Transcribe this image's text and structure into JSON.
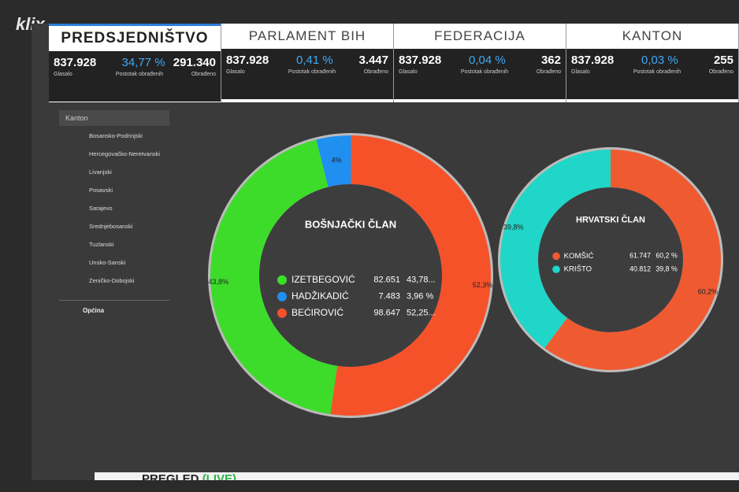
{
  "header": {
    "logo": "klix"
  },
  "tabs": [
    {
      "title": "PREDSJEDNIŠTVO",
      "voted": "837.928",
      "voted_label": "Glasalo",
      "percent": "34,77 %",
      "percent_label": "Postotak obrađenih",
      "processed": "291.340",
      "processed_label": "Obrađeno"
    },
    {
      "title": "PARLAMENT BIH",
      "voted": "837.928",
      "voted_label": "Glasalo",
      "percent": "0,41 %",
      "percent_label": "Postotak obrađenih",
      "processed": "3.447",
      "processed_label": "Obrađeno"
    },
    {
      "title": "FEDERACIJA",
      "voted": "837.928",
      "voted_label": "Glasalo",
      "percent": "0,04 %",
      "percent_label": "Postotak obrađenih",
      "processed": "362",
      "processed_label": "Obrađeno"
    },
    {
      "title": "KANTON",
      "voted": "837.928",
      "voted_label": "Glasalo",
      "percent": "0,03 %",
      "percent_label": "Postotak obrađenih",
      "processed": "255",
      "processed_label": "Obrađeno"
    }
  ],
  "sidebar": {
    "heading": "Kanton",
    "items": [
      "Bosansko-Podrinjski",
      "Hercegovačko-Neretvanski",
      "Livanjski",
      "Posavski",
      "Sarajevo",
      "Srednjebosanski",
      "Tuzlanski",
      "Unsko-Sanski",
      "Zeničko-Dobojski"
    ],
    "footer": "Općina"
  },
  "footer": {
    "title": "PREGLED",
    "live": "(LIVE)"
  },
  "chart_data": [
    {
      "type": "pie",
      "title": "BOŠNJAČKI ČLAN",
      "categories": [
        "IZETBEGOVIĆ",
        "HADŽIKADIĆ",
        "BEĆIROVIĆ"
      ],
      "values": [
        43.8,
        4,
        52.3
      ],
      "value_labels": [
        "43,8%",
        "4%",
        "52,3%"
      ],
      "colors": [
        "#3ddc2a",
        "#1f8ff0",
        "#f5522a"
      ],
      "votes": [
        "82.651",
        "7.483",
        "98.647"
      ],
      "percents": [
        "43,78...",
        "3,96 %",
        "52,25..."
      ]
    },
    {
      "type": "pie",
      "title": "HRVATSKI ČLAN",
      "categories": [
        "KOMŠIĆ",
        "KRIŠTO"
      ],
      "values": [
        60.2,
        39.8
      ],
      "value_labels": [
        "60,2%",
        "39,8%"
      ],
      "colors": [
        "#f05a30",
        "#1fd6c8"
      ],
      "votes": [
        "61.747",
        "40.812"
      ],
      "percents": [
        "60,2 %",
        "39,8 %"
      ]
    }
  ]
}
